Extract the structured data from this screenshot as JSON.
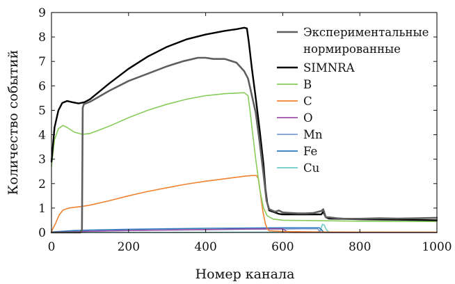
{
  "chart_data": {
    "type": "line",
    "xlabel": "Номер канала",
    "ylabel": "Количество событий",
    "xlim": [
      0,
      1000
    ],
    "ylim": [
      0,
      9
    ],
    "xticks": [
      "0",
      "200",
      "400",
      "600",
      "800",
      "1000"
    ],
    "yticks": [
      "0",
      "1",
      "2",
      "3",
      "4",
      "5",
      "6",
      "7",
      "8",
      "9"
    ],
    "grid": false,
    "legend_position": "top-right",
    "legend": [
      {
        "label": "Экспериментальные",
        "label2": "нормированные",
        "color": "#5f5f5f"
      },
      {
        "label": "SIMNRA",
        "color": "#000000"
      },
      {
        "label": "B",
        "color": "#86cc59"
      },
      {
        "label": "C",
        "color": "#f28230"
      },
      {
        "label": "O",
        "color": "#9b51a8"
      },
      {
        "label": "Mn",
        "color": "#7d9bd5"
      },
      {
        "label": "Fe",
        "color": "#2a78bd"
      },
      {
        "label": "Cu",
        "color": "#6dcbc9"
      }
    ],
    "series": [
      {
        "name": "Экспериментальные нормированные",
        "color": "#5f5f5f",
        "width": 2.6,
        "x": [
          0,
          75,
          79,
          81,
          84,
          100,
          150,
          200,
          250,
          300,
          340,
          380,
          400,
          420,
          450,
          480,
          500,
          510,
          520,
          530,
          540,
          550,
          558,
          565,
          580,
          590,
          600,
          620,
          640,
          660,
          680,
          700,
          705,
          712,
          720,
          740,
          760,
          800,
          850,
          900,
          950,
          1000
        ],
        "y": [
          0,
          0,
          0.1,
          5.1,
          5.25,
          5.35,
          5.8,
          6.2,
          6.5,
          6.8,
          7.0,
          7.15,
          7.15,
          7.1,
          7.1,
          6.95,
          6.6,
          6.3,
          5.6,
          4.9,
          3.7,
          2.4,
          1.3,
          0.95,
          0.85,
          0.9,
          0.82,
          0.8,
          0.78,
          0.78,
          0.8,
          0.88,
          0.95,
          0.62,
          0.62,
          0.58,
          0.56,
          0.56,
          0.58,
          0.57,
          0.58,
          0.6
        ]
      },
      {
        "name": "SIMNRA",
        "color": "#000000",
        "width": 2.4,
        "x": [
          0,
          8,
          18,
          28,
          40,
          55,
          70,
          85,
          100,
          150,
          200,
          250,
          300,
          350,
          400,
          450,
          480,
          500,
          507,
          512,
          520,
          530,
          540,
          550,
          555,
          560,
          565,
          575,
          590,
          600,
          700,
          705,
          712,
          720,
          800,
          900,
          1000
        ],
        "y": [
          2.9,
          4.3,
          5.0,
          5.3,
          5.38,
          5.33,
          5.28,
          5.33,
          5.45,
          6.1,
          6.7,
          7.2,
          7.6,
          7.9,
          8.1,
          8.25,
          8.32,
          8.38,
          8.35,
          7.8,
          6.7,
          5.5,
          4.2,
          2.8,
          1.8,
          1.2,
          0.9,
          0.85,
          0.76,
          0.74,
          0.74,
          0.85,
          0.62,
          0.57,
          0.54,
          0.52,
          0.5
        ]
      },
      {
        "name": "B",
        "color": "#86cc59",
        "width": 1.6,
        "x": [
          0,
          8,
          18,
          30,
          40,
          60,
          80,
          100,
          150,
          200,
          250,
          300,
          350,
          400,
          450,
          500,
          510,
          515,
          520,
          530,
          540,
          550,
          560,
          575,
          600,
          700,
          800,
          900,
          1000
        ],
        "y": [
          2.7,
          3.8,
          4.25,
          4.38,
          4.3,
          4.1,
          4.02,
          4.05,
          4.35,
          4.7,
          5.0,
          5.25,
          5.45,
          5.6,
          5.68,
          5.72,
          5.6,
          5.0,
          4.3,
          3.0,
          1.8,
          1.0,
          0.68,
          0.55,
          0.5,
          0.48,
          0.46,
          0.45,
          0.45
        ]
      },
      {
        "name": "C",
        "color": "#f28230",
        "width": 1.6,
        "x": [
          0,
          10,
          20,
          30,
          45,
          60,
          80,
          100,
          150,
          200,
          250,
          300,
          350,
          400,
          450,
          500,
          520,
          532,
          537,
          542,
          548,
          555,
          560,
          565,
          600,
          700,
          1000
        ],
        "y": [
          0.05,
          0.35,
          0.72,
          0.92,
          1.0,
          1.03,
          1.07,
          1.12,
          1.3,
          1.5,
          1.68,
          1.83,
          1.98,
          2.1,
          2.2,
          2.3,
          2.33,
          2.33,
          2.2,
          1.6,
          0.9,
          0.35,
          0.15,
          0.07,
          0.04,
          0.02,
          0.01
        ]
      },
      {
        "name": "O",
        "color": "#9b51a8",
        "width": 1.6,
        "x": [
          0,
          20,
          60,
          100,
          200,
          300,
          400,
          500,
          580,
          600,
          605,
          612,
          620,
          700,
          1000
        ],
        "y": [
          0,
          0.01,
          0.03,
          0.05,
          0.08,
          0.1,
          0.12,
          0.14,
          0.15,
          0.15,
          0.1,
          0.02,
          0,
          0,
          0
        ]
      },
      {
        "name": "Mn",
        "color": "#7d9bd5",
        "width": 1.6,
        "x": [
          0,
          20,
          60,
          100,
          200,
          300,
          400,
          500,
          600,
          650,
          680,
          690,
          695,
          700,
          710,
          1000
        ],
        "y": [
          0,
          0.01,
          0.03,
          0.05,
          0.08,
          0.1,
          0.11,
          0.13,
          0.14,
          0.15,
          0.15,
          0.15,
          0.08,
          0.02,
          0,
          0
        ]
      },
      {
        "name": "Fe",
        "color": "#2a78bd",
        "width": 1.6,
        "x": [
          0,
          20,
          60,
          100,
          200,
          300,
          400,
          500,
          600,
          650,
          690,
          695,
          700,
          705,
          712,
          1000
        ],
        "y": [
          0.02,
          0.04,
          0.08,
          0.1,
          0.13,
          0.15,
          0.17,
          0.18,
          0.19,
          0.19,
          0.19,
          0.19,
          0.12,
          0.03,
          0,
          0
        ]
      },
      {
        "name": "Cu",
        "color": "#6dcbc9",
        "width": 1.6,
        "x": [
          0,
          100,
          300,
          500,
          690,
          698,
          703,
          708,
          712,
          716,
          722,
          730,
          1000
        ],
        "y": [
          0,
          0,
          0,
          0.01,
          0.02,
          0.1,
          0.34,
          0.3,
          0.15,
          0.06,
          0.02,
          0,
          0
        ]
      }
    ]
  }
}
